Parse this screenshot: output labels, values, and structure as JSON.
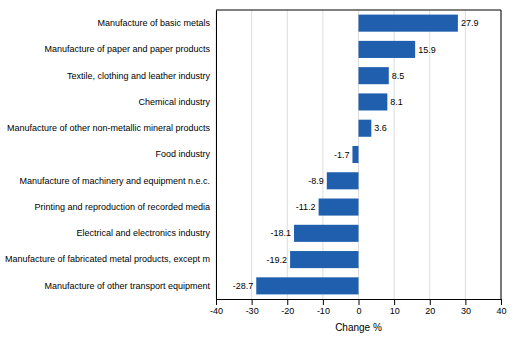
{
  "chart_data": {
    "type": "bar",
    "orientation": "horizontal",
    "categories": [
      "Manufacture of other transport equipment",
      "Manufacture of fabricated metal products, except m",
      "Electrical and electronics industry",
      "Printing and reproduction of recorded media",
      "Manufacture of machinery and equipment n.e.c.",
      "Food industry",
      "Manufacture of other non-metallic mineral products",
      "Chemical industry",
      "Textile, clothing and leather industry",
      "Manufacture of paper and paper products",
      "Manufacture of basic metals"
    ],
    "values": [
      -28.7,
      -19.2,
      -18.1,
      -11.2,
      -8.9,
      -1.7,
      3.6,
      8.1,
      8.5,
      15.9,
      27.9
    ],
    "color": "#1F5FAD",
    "xlabel": "Change %",
    "xlim": [
      -40,
      40
    ],
    "xticks": [
      -40,
      -30,
      -20,
      -10,
      0,
      10,
      20,
      30,
      40
    ],
    "grid": true,
    "data_labels": true
  }
}
